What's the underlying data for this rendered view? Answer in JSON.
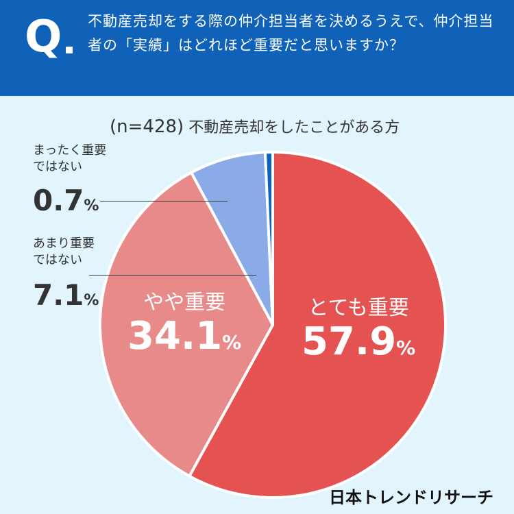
{
  "header": {
    "q_mark": "Q",
    "question": "不動産売却をする際の仲介担当者を決めるうえで、仲介担当者の「実績」はどれほど重要だと思いますか？"
  },
  "subtitle": {
    "n": "(n=428)",
    "text": "不動産売却をしたことがある方"
  },
  "colors": {
    "header_bg": "#0f62b8",
    "background": "#e3f5fc",
    "very_important": "#e55252",
    "somewhat_important": "#e88a8a",
    "not_very_important": "#8aabe8",
    "not_important_at_all": "#0f62b8"
  },
  "labels": {
    "very_important": {
      "name": "とても重要",
      "pct": "57.9",
      "unit": "%"
    },
    "somewhat_important": {
      "name": "やや重要",
      "pct": "34.1",
      "unit": "%"
    },
    "not_very_important": {
      "line1": "あまり重要",
      "line2": "ではない",
      "pct": "7.1",
      "unit": "%"
    },
    "not_important_at_all": {
      "line1": "まったく重要",
      "line2": "ではない",
      "pct": "0.7",
      "unit": "%"
    }
  },
  "brand": "日本トレンドリサーチ",
  "chart_data": {
    "type": "pie",
    "start": "12 o'clock",
    "direction": "clockwise",
    "categories": [
      "とても重要",
      "やや重要",
      "あまり重要ではない",
      "まったく重要ではない"
    ],
    "values": [
      57.9,
      34.1,
      7.1,
      0.7
    ],
    "unit": "%",
    "colors": [
      "#e55252",
      "#e88a8a",
      "#8aabe8",
      "#0f62b8"
    ],
    "note": "n=428"
  }
}
